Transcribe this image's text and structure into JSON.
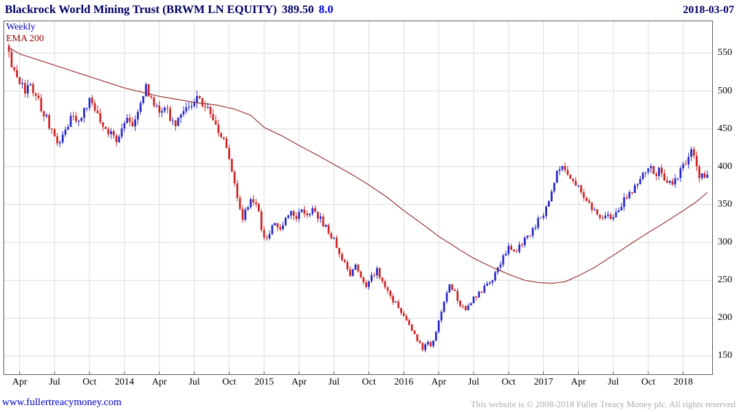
{
  "header": {
    "title": "Blackrock World Mining Trust (BRWM LN EQUITY)",
    "price": "389.50",
    "change": "8.0",
    "date": "2018-03-07"
  },
  "chart_data": {
    "type": "candlestick",
    "title": "Blackrock World Mining Trust (BRWM LN EQUITY)",
    "frequency": "Weekly",
    "overlay": "EMA 200",
    "last_close": 389.5,
    "change": 8.0,
    "as_of_date": "2018-03-07",
    "total_weeks": 260,
    "y_axis": {
      "ticks": [
        150,
        200,
        250,
        300,
        350,
        400,
        450,
        500,
        550
      ],
      "min": 125,
      "max": 593
    },
    "x_axis": {
      "tick_labels": [
        "Apr",
        "Jul",
        "Oct",
        "2014",
        "Apr",
        "Jul",
        "Oct",
        "2015",
        "Apr",
        "Jul",
        "Oct",
        "2016",
        "Apr",
        "Jul",
        "Oct",
        "2017",
        "Apr",
        "Jul",
        "Oct",
        "2018"
      ],
      "tick_weeks": [
        4,
        17,
        30,
        43,
        56,
        69,
        82,
        95,
        108,
        121,
        134,
        147,
        160,
        173,
        186,
        199,
        212,
        225,
        238,
        251
      ]
    },
    "close_keypoints": [
      [
        0,
        552
      ],
      [
        1,
        536
      ],
      [
        2,
        523
      ],
      [
        3,
        516
      ],
      [
        4,
        511
      ],
      [
        5,
        505
      ],
      [
        6,
        499
      ],
      [
        8,
        507
      ],
      [
        10,
        491
      ],
      [
        12,
        479
      ],
      [
        14,
        465
      ],
      [
        16,
        447
      ],
      [
        18,
        430
      ],
      [
        20,
        443
      ],
      [
        22,
        456
      ],
      [
        24,
        468
      ],
      [
        26,
        461
      ],
      [
        28,
        475
      ],
      [
        30,
        488
      ],
      [
        32,
        477
      ],
      [
        34,
        462
      ],
      [
        36,
        452
      ],
      [
        38,
        443
      ],
      [
        40,
        436
      ],
      [
        42,
        450
      ],
      [
        44,
        461
      ],
      [
        46,
        455
      ],
      [
        48,
        468
      ],
      [
        50,
        494
      ],
      [
        51,
        513
      ],
      [
        52,
        499
      ],
      [
        54,
        483
      ],
      [
        56,
        470
      ],
      [
        58,
        478
      ],
      [
        60,
        465
      ],
      [
        62,
        456
      ],
      [
        64,
        464
      ],
      [
        66,
        474
      ],
      [
        68,
        482
      ],
      [
        70,
        490
      ],
      [
        72,
        484
      ],
      [
        74,
        479
      ],
      [
        76,
        466
      ],
      [
        78,
        450
      ],
      [
        80,
        432
      ],
      [
        82,
        409
      ],
      [
        84,
        377
      ],
      [
        86,
        347
      ],
      [
        87,
        332
      ],
      [
        89,
        351
      ],
      [
        91,
        357
      ],
      [
        93,
        337
      ],
      [
        94,
        318
      ],
      [
        95,
        304
      ],
      [
        97,
        314
      ],
      [
        99,
        326
      ],
      [
        101,
        318
      ],
      [
        103,
        331
      ],
      [
        105,
        340
      ],
      [
        107,
        333
      ],
      [
        109,
        342
      ],
      [
        111,
        336
      ],
      [
        113,
        345
      ],
      [
        115,
        335
      ],
      [
        117,
        325
      ],
      [
        119,
        314
      ],
      [
        121,
        304
      ],
      [
        123,
        287
      ],
      [
        125,
        271
      ],
      [
        127,
        257
      ],
      [
        129,
        269
      ],
      [
        131,
        252
      ],
      [
        133,
        244
      ],
      [
        135,
        256
      ],
      [
        137,
        264
      ],
      [
        139,
        248
      ],
      [
        141,
        235
      ],
      [
        143,
        224
      ],
      [
        145,
        214
      ],
      [
        147,
        205
      ],
      [
        149,
        191
      ],
      [
        151,
        177
      ],
      [
        153,
        165
      ],
      [
        154,
        159
      ],
      [
        155,
        163
      ],
      [
        156,
        168
      ],
      [
        157,
        161
      ],
      [
        158,
        171
      ],
      [
        159,
        181
      ],
      [
        160,
        196
      ],
      [
        161,
        209
      ],
      [
        162,
        223
      ],
      [
        163,
        235
      ],
      [
        164,
        245
      ],
      [
        166,
        233
      ],
      [
        168,
        219
      ],
      [
        170,
        213
      ],
      [
        172,
        222
      ],
      [
        174,
        230
      ],
      [
        176,
        236
      ],
      [
        178,
        243
      ],
      [
        180,
        251
      ],
      [
        182,
        265
      ],
      [
        184,
        280
      ],
      [
        186,
        292
      ],
      [
        188,
        286
      ],
      [
        190,
        296
      ],
      [
        191,
        299
      ],
      [
        193,
        308
      ],
      [
        195,
        318
      ],
      [
        197,
        328
      ],
      [
        199,
        337
      ],
      [
        200,
        344
      ],
      [
        201,
        355
      ],
      [
        202,
        366
      ],
      [
        203,
        378
      ],
      [
        204,
        390
      ],
      [
        205,
        400
      ],
      [
        206,
        406
      ],
      [
        207,
        399
      ],
      [
        209,
        389
      ],
      [
        211,
        379
      ],
      [
        213,
        369
      ],
      [
        215,
        357
      ],
      [
        217,
        345
      ],
      [
        219,
        335
      ],
      [
        221,
        329
      ],
      [
        223,
        340
      ],
      [
        224,
        334
      ],
      [
        225,
        337
      ],
      [
        227,
        346
      ],
      [
        229,
        356
      ],
      [
        231,
        365
      ],
      [
        233,
        374
      ],
      [
        235,
        384
      ],
      [
        237,
        392
      ],
      [
        239,
        398
      ],
      [
        240,
        389
      ],
      [
        242,
        396
      ],
      [
        244,
        385
      ],
      [
        246,
        377
      ],
      [
        248,
        385
      ],
      [
        250,
        394
      ],
      [
        252,
        404
      ],
      [
        253,
        417
      ],
      [
        254,
        424
      ],
      [
        255,
        411
      ],
      [
        256,
        398
      ],
      [
        257,
        386
      ],
      [
        258,
        392
      ],
      [
        259,
        386
      ],
      [
        260,
        389.5
      ]
    ],
    "ema_keypoints": [
      [
        0,
        557
      ],
      [
        4,
        549
      ],
      [
        17,
        534
      ],
      [
        30,
        519
      ],
      [
        43,
        504
      ],
      [
        56,
        493
      ],
      [
        69,
        485
      ],
      [
        78,
        481
      ],
      [
        84,
        476
      ],
      [
        90,
        468
      ],
      [
        95,
        452
      ],
      [
        102,
        440
      ],
      [
        108,
        428
      ],
      [
        115,
        415
      ],
      [
        121,
        403
      ],
      [
        128,
        389
      ],
      [
        134,
        376
      ],
      [
        141,
        359
      ],
      [
        147,
        342
      ],
      [
        154,
        324
      ],
      [
        160,
        308
      ],
      [
        167,
        292
      ],
      [
        173,
        279
      ],
      [
        180,
        267
      ],
      [
        186,
        258
      ],
      [
        192,
        250
      ],
      [
        197,
        247
      ],
      [
        202,
        246
      ],
      [
        207,
        248
      ],
      [
        212,
        256
      ],
      [
        218,
        267
      ],
      [
        225,
        283
      ],
      [
        231,
        297
      ],
      [
        238,
        313
      ],
      [
        244,
        326
      ],
      [
        251,
        342
      ],
      [
        256,
        354
      ],
      [
        260,
        366
      ]
    ],
    "colors": {
      "up_candle": "#2525C8",
      "down_candle": "#CC2222",
      "ema_line": "#993333",
      "grid": "#DCDCDC",
      "axis_border": "#555555",
      "title": "#000066",
      "change": "#0000EE",
      "frequency_label": "#0000BB",
      "overlay_label": "#990000",
      "footer_link": "#0000CC",
      "footer_copyright": "#AAAAAA"
    },
    "seed": 20180307
  },
  "footer": {
    "link": "www.fullertreacymoney.com",
    "copyright": "This website is © 2008-2018 Fuller Treacy Money plc. All rights reserved"
  }
}
